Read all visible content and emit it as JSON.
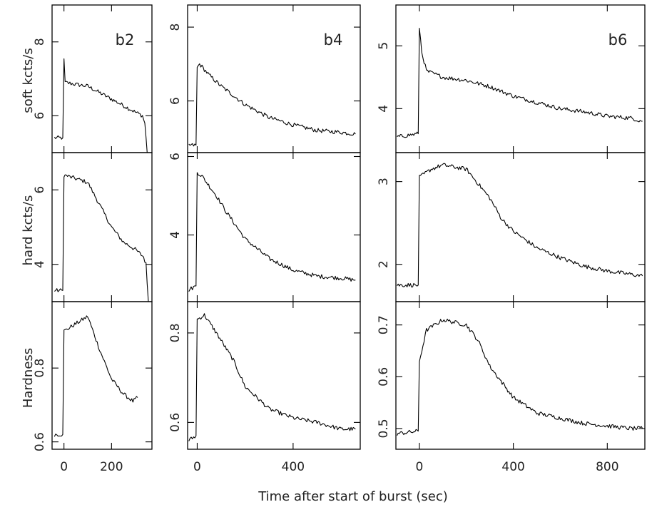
{
  "chart_data": {
    "type": "line",
    "xlabel": "Time after start of burst (sec)",
    "row_labels": [
      "soft kcts/s",
      "hard kcts/s",
      "Hardness"
    ],
    "columns": [
      {
        "name": "b2",
        "xlim": [
          -50,
          370
        ],
        "xticks": [
          0,
          200
        ],
        "rows": [
          {
            "ylim": [
              5.0,
              9.0
            ],
            "yticks": [
              6,
              8
            ],
            "points": [
              [
                -40,
                5.4
              ],
              [
                -5,
                5.4
              ],
              [
                0,
                7.5
              ],
              [
                5,
                6.9
              ],
              [
                50,
                6.85
              ],
              [
                100,
                6.8
              ],
              [
                200,
                6.45
              ],
              [
                300,
                6.1
              ],
              [
                330,
                6.0
              ],
              [
                340,
                5.8
              ],
              [
                350,
                5.0
              ]
            ]
          },
          {
            "ylim": [
              3.0,
              7.0
            ],
            "yticks": [
              4,
              6
            ],
            "points": [
              [
                -40,
                3.3
              ],
              [
                -5,
                3.3
              ],
              [
                0,
                6.4
              ],
              [
                50,
                6.3
              ],
              [
                100,
                6.2
              ],
              [
                150,
                5.6
              ],
              [
                200,
                5.0
              ],
              [
                250,
                4.6
              ],
              [
                300,
                4.4
              ],
              [
                335,
                4.2
              ],
              [
                345,
                4.0
              ],
              [
                355,
                3.0
              ]
            ]
          },
          {
            "ylim": [
              0.58,
              0.98
            ],
            "yticks": [
              0.6,
              0.8
            ],
            "points": [
              [
                -40,
                0.62
              ],
              [
                -5,
                0.62
              ],
              [
                0,
                0.9
              ],
              [
                50,
                0.92
              ],
              [
                100,
                0.94
              ],
              [
                150,
                0.85
              ],
              [
                200,
                0.77
              ],
              [
                250,
                0.73
              ],
              [
                290,
                0.71
              ],
              [
                310,
                0.72
              ]
            ]
          }
        ]
      },
      {
        "name": "b4",
        "xlim": [
          -40,
          680
        ],
        "xticks": [
          0,
          400
        ],
        "rows": [
          {
            "ylim": [
              4.6,
              8.6
            ],
            "yticks": [
              6,
              8
            ],
            "points": [
              [
                -35,
                4.8
              ],
              [
                -5,
                4.8
              ],
              [
                0,
                6.9
              ],
              [
                10,
                7.0
              ],
              [
                50,
                6.7
              ],
              [
                100,
                6.4
              ],
              [
                200,
                5.9
              ],
              [
                300,
                5.55
              ],
              [
                400,
                5.35
              ],
              [
                500,
                5.2
              ],
              [
                600,
                5.15
              ],
              [
                660,
                5.1
              ]
            ]
          },
          {
            "ylim": [
              2.3,
              6.1
            ],
            "yticks": [
              4,
              6
            ],
            "points": [
              [
                -35,
                2.6
              ],
              [
                -5,
                2.7
              ],
              [
                0,
                5.6
              ],
              [
                20,
                5.5
              ],
              [
                80,
                5.0
              ],
              [
                120,
                4.6
              ],
              [
                200,
                3.9
              ],
              [
                300,
                3.4
              ],
              [
                400,
                3.1
              ],
              [
                500,
                2.95
              ],
              [
                600,
                2.9
              ],
              [
                660,
                2.85
              ]
            ]
          },
          {
            "ylim": [
              0.54,
              0.87
            ],
            "yticks": [
              0.6,
              0.8
            ],
            "points": [
              [
                -35,
                0.56
              ],
              [
                -5,
                0.57
              ],
              [
                0,
                0.83
              ],
              [
                30,
                0.84
              ],
              [
                80,
                0.8
              ],
              [
                150,
                0.74
              ],
              [
                200,
                0.68
              ],
              [
                300,
                0.63
              ],
              [
                400,
                0.61
              ],
              [
                500,
                0.6
              ],
              [
                600,
                0.585
              ],
              [
                660,
                0.585
              ]
            ]
          }
        ]
      },
      {
        "name": "b6",
        "xlim": [
          -100,
          960
        ],
        "xticks": [
          0,
          400,
          800
        ],
        "rows": [
          {
            "ylim": [
              3.3,
              5.65
            ],
            "yticks": [
              4,
              5
            ],
            "points": [
              [
                -95,
                3.55
              ],
              [
                -5,
                3.6
              ],
              [
                0,
                5.3
              ],
              [
                10,
                4.9
              ],
              [
                30,
                4.6
              ],
              [
                100,
                4.5
              ],
              [
                200,
                4.45
              ],
              [
                300,
                4.35
              ],
              [
                400,
                4.2
              ],
              [
                500,
                4.1
              ],
              [
                600,
                4.0
              ],
              [
                700,
                3.95
              ],
              [
                800,
                3.88
              ],
              [
                900,
                3.85
              ],
              [
                950,
                3.8
              ]
            ]
          },
          {
            "ylim": [
              1.55,
              3.35
            ],
            "yticks": [
              2,
              3
            ],
            "points": [
              [
                -95,
                1.75
              ],
              [
                -5,
                1.75
              ],
              [
                0,
                3.05
              ],
              [
                50,
                3.15
              ],
              [
                100,
                3.2
              ],
              [
                200,
                3.15
              ],
              [
                300,
                2.8
              ],
              [
                350,
                2.55
              ],
              [
                400,
                2.4
              ],
              [
                500,
                2.2
              ],
              [
                600,
                2.08
              ],
              [
                700,
                1.98
              ],
              [
                800,
                1.92
              ],
              [
                900,
                1.88
              ],
              [
                950,
                1.86
              ]
            ]
          },
          {
            "ylim": [
              0.46,
              0.745
            ],
            "yticks": [
              0.5,
              0.6,
              0.7
            ],
            "points": [
              [
                -95,
                0.49
              ],
              [
                -5,
                0.495
              ],
              [
                0,
                0.63
              ],
              [
                30,
                0.69
              ],
              [
                100,
                0.71
              ],
              [
                200,
                0.7
              ],
              [
                250,
                0.67
              ],
              [
                300,
                0.62
              ],
              [
                400,
                0.56
              ],
              [
                500,
                0.53
              ],
              [
                600,
                0.52
              ],
              [
                700,
                0.51
              ],
              [
                800,
                0.505
              ],
              [
                900,
                0.5
              ],
              [
                950,
                0.5
              ]
            ]
          }
        ]
      }
    ]
  }
}
